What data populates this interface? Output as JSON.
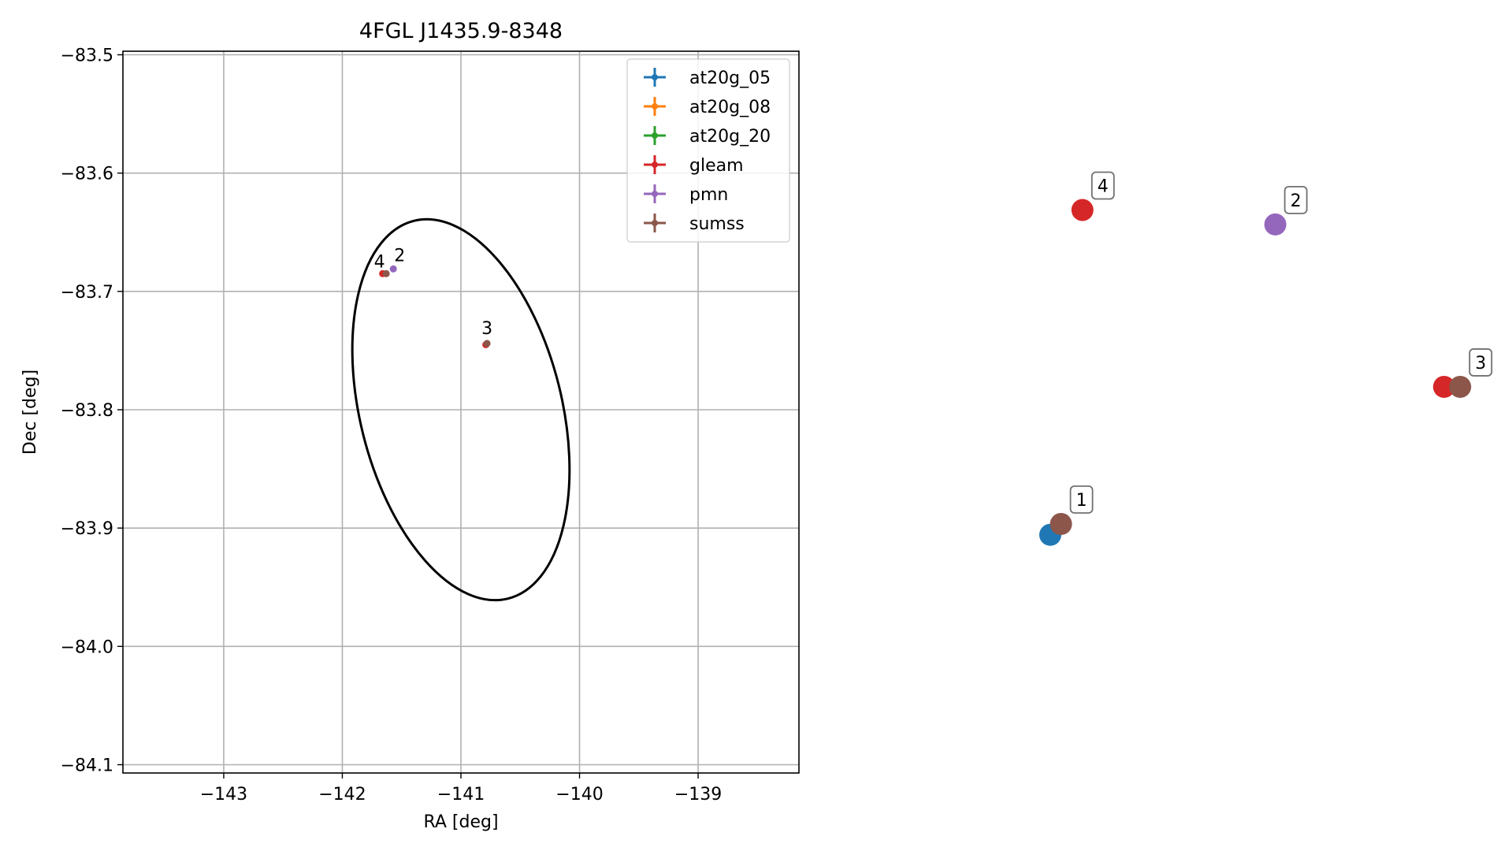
{
  "chart_data": [
    {
      "type": "scatter",
      "title": "4FGL J1435.9-8348",
      "xlabel": "RA [deg]",
      "ylabel": "Dec [deg]",
      "xlim": [
        -143.85,
        -138.15
      ],
      "ylim": [
        -84.107,
        -83.497
      ],
      "xticks": [
        -143,
        -142,
        -141,
        -140,
        -139
      ],
      "yticks": [
        -83.5,
        -83.6,
        -83.7,
        -83.8,
        -83.9,
        -84.0,
        -84.1
      ],
      "xtick_labels": [
        "−143",
        "−142",
        "−141",
        "−140",
        "−139"
      ],
      "ytick_labels": [
        "−83.5",
        "−83.6",
        "−83.7",
        "−83.8",
        "−83.9",
        "−84.0",
        "−84.1"
      ],
      "grid": true,
      "legend_position": "upper right",
      "legend": [
        "at20g_05",
        "at20g_08",
        "at20g_20",
        "gleam",
        "pmn",
        "sumss"
      ],
      "series": [
        {
          "name": "at20g_05",
          "color": "#1f77b4",
          "points": []
        },
        {
          "name": "at20g_08",
          "color": "#ff7f0e",
          "points": []
        },
        {
          "name": "at20g_20",
          "color": "#2ca02c",
          "points": []
        },
        {
          "name": "gleam",
          "color": "#d62728",
          "points": [
            {
              "x": -141.66,
              "y": -83.685
            },
            {
              "x": -140.79,
              "y": -83.745
            }
          ]
        },
        {
          "name": "pmn",
          "color": "#9467bd",
          "points": [
            {
              "x": -141.57,
              "y": -83.681
            }
          ]
        },
        {
          "name": "sumss",
          "color": "#8c564b",
          "points": [
            {
              "x": -141.63,
              "y": -83.685
            },
            {
              "x": -140.78,
              "y": -83.744
            }
          ]
        }
      ],
      "point_labels": [
        {
          "text": "4",
          "x": -141.64,
          "y": -83.685
        },
        {
          "text": "2",
          "x": -141.57,
          "y": -83.681
        },
        {
          "text": "3",
          "x": -140.78,
          "y": -83.744
        }
      ],
      "ellipse": {
        "center_x": -141.0,
        "center_y": -83.8,
        "color": "#000000",
        "note": "uncertainty region"
      }
    },
    {
      "type": "scatter",
      "axis_visible": false,
      "points": [
        {
          "label": "4",
          "source": "gleam",
          "color": "#d62728",
          "x": 0.21,
          "y": 0.78
        },
        {
          "label": "2",
          "source": "pmn",
          "color": "#9467bd",
          "x": 0.57,
          "y": 0.76
        },
        {
          "label": "3",
          "source": "gleam",
          "color": "#d62728",
          "x": 0.885,
          "y": 0.535
        },
        {
          "label": "3",
          "source": "sumss",
          "color": "#8c564b",
          "x": 0.915,
          "y": 0.535
        },
        {
          "label": "1",
          "source": "at20g_05",
          "color": "#1f77b4",
          "x": 0.15,
          "y": 0.33
        },
        {
          "label": "1",
          "source": "sumss",
          "color": "#8c564b",
          "x": 0.17,
          "y": 0.345
        }
      ],
      "boxed_labels": [
        {
          "text": "4",
          "x": 0.21,
          "y": 0.78
        },
        {
          "text": "2",
          "x": 0.57,
          "y": 0.76
        },
        {
          "text": "3",
          "x": 0.915,
          "y": 0.535
        },
        {
          "text": "1",
          "x": 0.17,
          "y": 0.345
        }
      ]
    }
  ]
}
